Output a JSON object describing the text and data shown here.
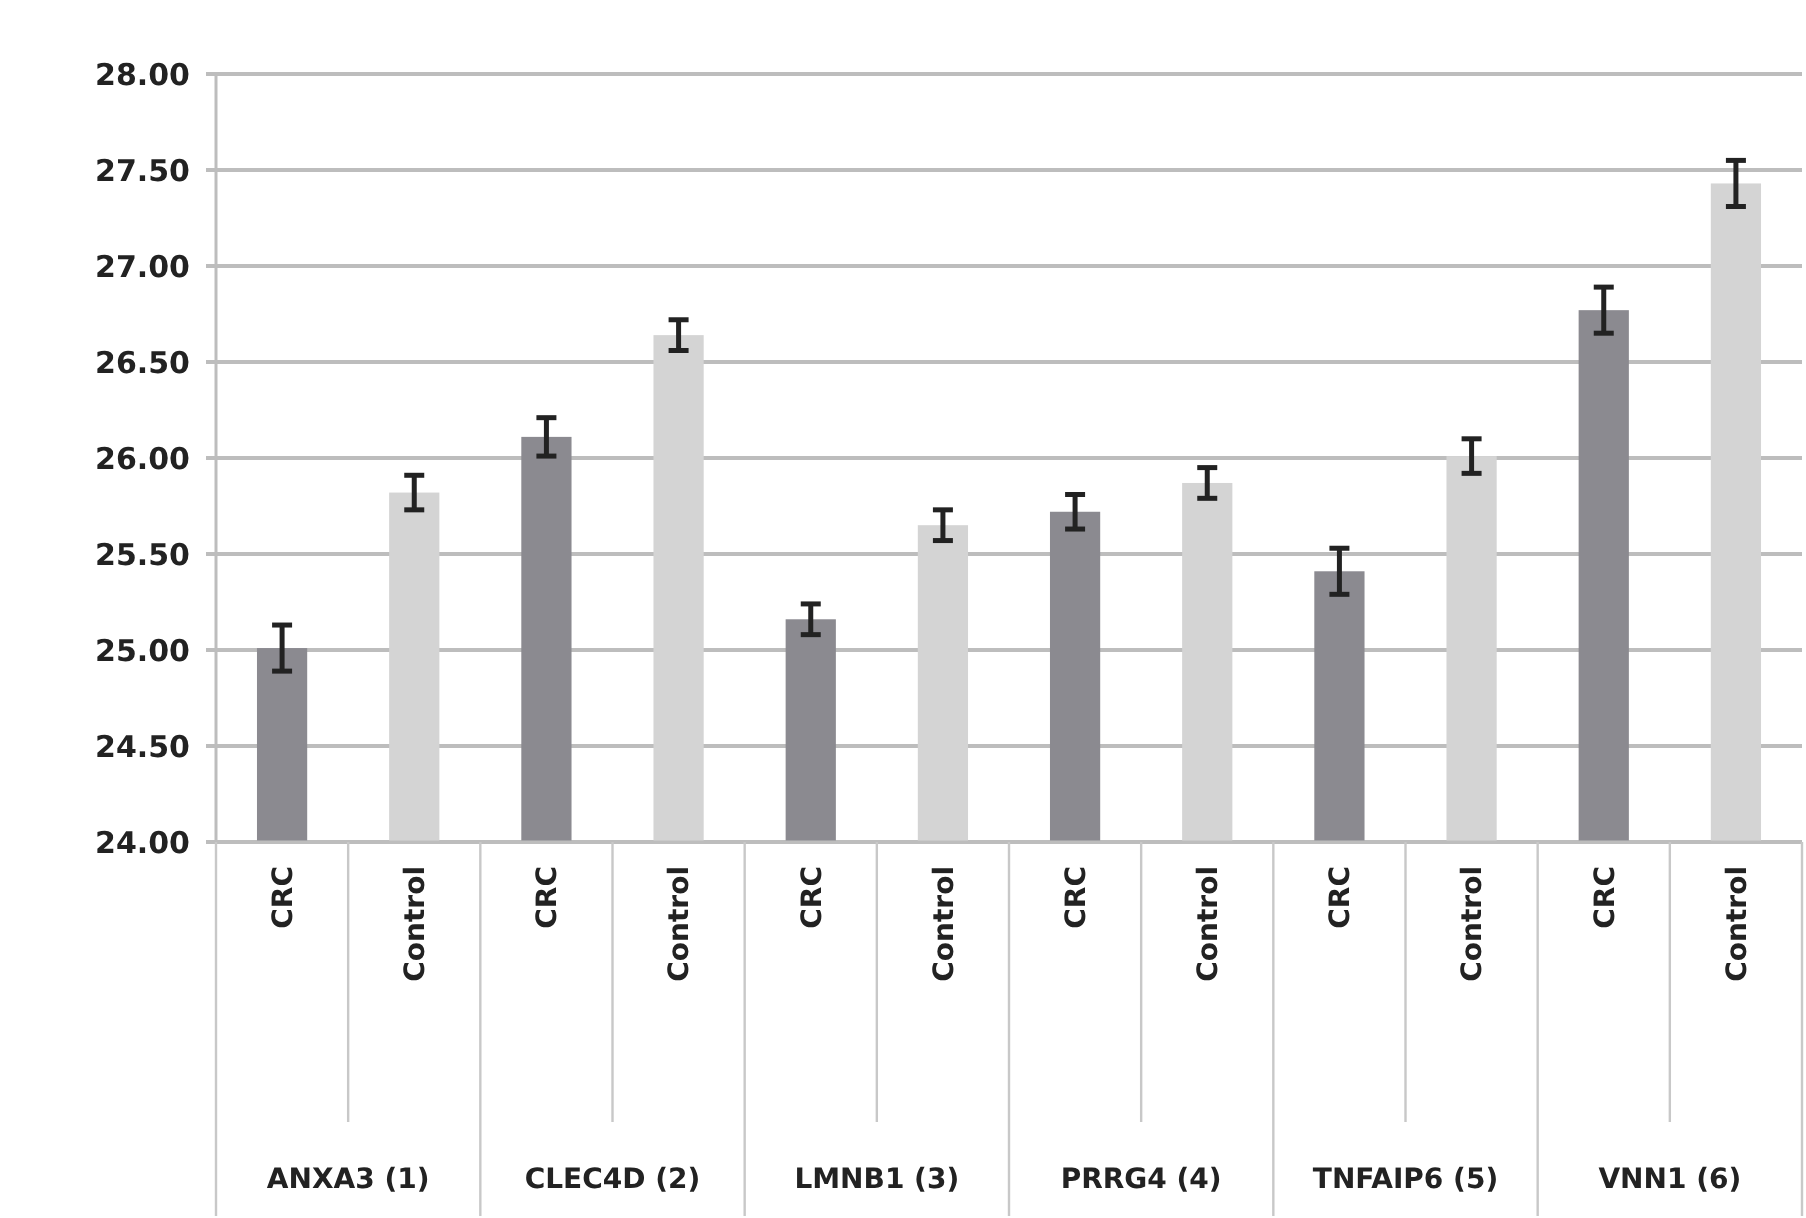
{
  "chart_data": {
    "type": "bar",
    "categories": [
      "CRC",
      "Control",
      "CRC",
      "Control",
      "CRC",
      "Control",
      "CRC",
      "Control",
      "CRC",
      "Control",
      "CRC",
      "Control"
    ],
    "values": [
      25.01,
      25.82,
      26.11,
      26.64,
      25.16,
      25.65,
      25.72,
      25.87,
      25.41,
      26.01,
      26.77,
      27.43
    ],
    "errors": [
      0.12,
      0.09,
      0.1,
      0.08,
      0.08,
      0.08,
      0.09,
      0.08,
      0.12,
      0.09,
      0.12,
      0.12
    ],
    "colors": [
      "#8b8a90",
      "#d4d4d4",
      "#8b8a90",
      "#d4d4d4",
      "#8b8a90",
      "#d4d4d4",
      "#8b8a90",
      "#d4d4d4",
      "#8b8a90",
      "#d4d4d4",
      "#8b8a90",
      "#d4d4d4"
    ],
    "annotations": [
      "ANXA3 (1)",
      "CLEC4D (2)",
      "LMNB1 (3)",
      "PRRG4 (4)",
      "TNFAIP6 (5)",
      "VNN1 (6)"
    ],
    "ylim": [
      24,
      28
    ],
    "yticks": [
      {
        "value": 24,
        "label": "24.00"
      },
      {
        "value": 24.5,
        "label": "24.50"
      },
      {
        "value": 25,
        "label": "25.00"
      },
      {
        "value": 25.5,
        "label": "25.50"
      },
      {
        "value": 26,
        "label": "26.00"
      },
      {
        "value": 26.5,
        "label": "26.50"
      },
      {
        "value": 27,
        "label": "27.00"
      },
      {
        "value": 27.5,
        "label": "27.50"
      },
      {
        "value": 28,
        "label": "28.00"
      }
    ],
    "grid": "y"
  }
}
